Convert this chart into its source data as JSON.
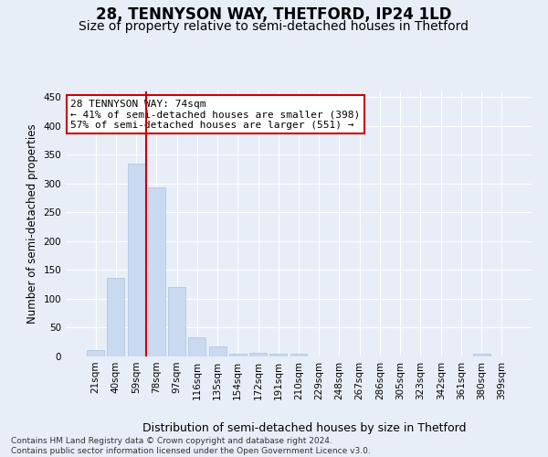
{
  "title": "28, TENNYSON WAY, THETFORD, IP24 1LD",
  "subtitle": "Size of property relative to semi-detached houses in Thetford",
  "xlabel": "Distribution of semi-detached houses by size in Thetford",
  "ylabel": "Number of semi-detached properties",
  "categories": [
    "21sqm",
    "40sqm",
    "59sqm",
    "78sqm",
    "97sqm",
    "116sqm",
    "135sqm",
    "154sqm",
    "172sqm",
    "191sqm",
    "210sqm",
    "229sqm",
    "248sqm",
    "267sqm",
    "286sqm",
    "305sqm",
    "323sqm",
    "342sqm",
    "361sqm",
    "380sqm",
    "399sqm"
  ],
  "values": [
    11,
    137,
    335,
    293,
    121,
    33,
    18,
    5,
    7,
    5,
    4,
    0,
    0,
    0,
    0,
    0,
    0,
    0,
    0,
    4,
    0
  ],
  "bar_color": "#c9d9f0",
  "bar_edge_color": "#a8c4e0",
  "vline_color": "#cc0000",
  "vline_pos": 2.5,
  "annotation_text_line1": "28 TENNYSON WAY: 74sqm",
  "annotation_text_line2": "← 41% of semi-detached houses are smaller (398)",
  "annotation_text_line3": "57% of semi-detached houses are larger (551) →",
  "annotation_box_facecolor": "#ffffff",
  "annotation_box_edgecolor": "#cc0000",
  "ylim": [
    0,
    460
  ],
  "yticks": [
    0,
    50,
    100,
    150,
    200,
    250,
    300,
    350,
    400,
    450
  ],
  "background_color": "#e8eef8",
  "grid_color": "#ffffff",
  "footer_line1": "Contains HM Land Registry data © Crown copyright and database right 2024.",
  "footer_line2": "Contains public sector information licensed under the Open Government Licence v3.0.",
  "title_fontsize": 12,
  "subtitle_fontsize": 10,
  "xlabel_fontsize": 9,
  "ylabel_fontsize": 8.5,
  "tick_fontsize": 7.5,
  "annotation_fontsize": 8,
  "footer_fontsize": 6.5
}
